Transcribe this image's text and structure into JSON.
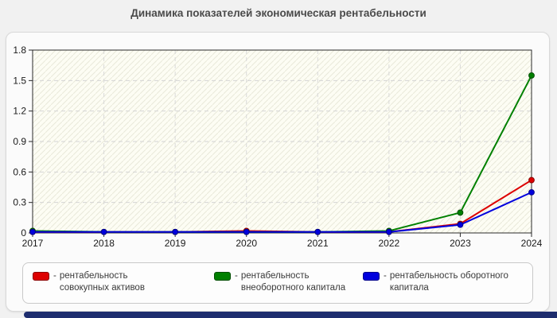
{
  "title": "Динамика показателей экономическая рентабельности",
  "legend": {
    "separator": "-",
    "position": "bottom"
  },
  "chart_data": {
    "type": "line",
    "title": "Динамика показателей экономическая рентабельности",
    "categories": [
      "2017",
      "2018",
      "2019",
      "2020",
      "2021",
      "2022",
      "2023",
      "2024"
    ],
    "series": [
      {
        "name": "рентабельность совокупных активов",
        "color": "#dd0000",
        "edge": "#8b0000",
        "values": [
          0.01,
          0.01,
          0.01,
          0.02,
          0.01,
          0.01,
          0.09,
          0.52
        ]
      },
      {
        "name": "рентабельность внеоборотного капитала",
        "color": "#008000",
        "edge": "#004d00",
        "values": [
          0.02,
          0.01,
          0.01,
          0.01,
          0.01,
          0.02,
          0.2,
          1.55
        ]
      },
      {
        "name": "рентабельность оборотного капитала",
        "color": "#0000dd",
        "edge": "#00008b",
        "values": [
          0.01,
          0.01,
          0.01,
          0.01,
          0.01,
          0.01,
          0.08,
          0.4
        ]
      }
    ],
    "xlabel": "",
    "ylabel": "",
    "ylim": [
      0,
      1.8
    ],
    "y_ticks": [
      0,
      0.3,
      0.6,
      0.9,
      1.2,
      1.5,
      1.8
    ],
    "grid": "dashed",
    "legend_position": "bottom",
    "marker": "circle"
  }
}
